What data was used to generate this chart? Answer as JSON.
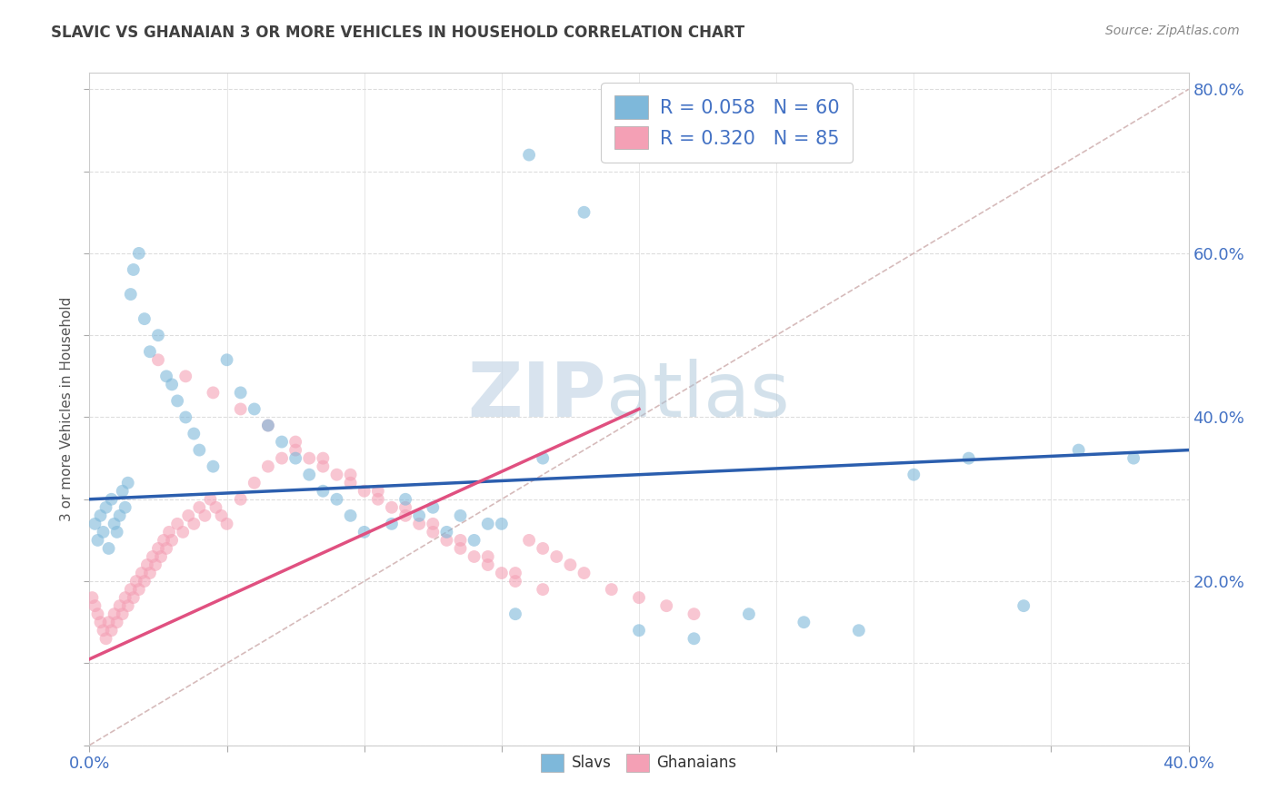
{
  "title": "SLAVIC VS GHANAIAN 3 OR MORE VEHICLES IN HOUSEHOLD CORRELATION CHART",
  "source_text": "Source: ZipAtlas.com",
  "ylabel": "3 or more Vehicles in Household",
  "xlim": [
    0.0,
    0.4
  ],
  "ylim": [
    0.0,
    0.82
  ],
  "slavs_color": "#7EB8DA",
  "ghanaians_color": "#F4A0B5",
  "slavs_R": 0.058,
  "slavs_N": 60,
  "ghanaians_R": 0.32,
  "ghanaians_N": 85,
  "slavs_scatter_x": [
    0.002,
    0.003,
    0.004,
    0.005,
    0.006,
    0.007,
    0.008,
    0.009,
    0.01,
    0.011,
    0.012,
    0.013,
    0.014,
    0.015,
    0.016,
    0.018,
    0.02,
    0.022,
    0.025,
    0.028,
    0.03,
    0.032,
    0.035,
    0.038,
    0.04,
    0.045,
    0.05,
    0.055,
    0.06,
    0.065,
    0.07,
    0.075,
    0.08,
    0.085,
    0.09,
    0.095,
    0.1,
    0.11,
    0.12,
    0.13,
    0.14,
    0.15,
    0.16,
    0.18,
    0.2,
    0.22,
    0.24,
    0.26,
    0.28,
    0.3,
    0.32,
    0.34,
    0.36,
    0.38,
    0.115,
    0.125,
    0.135,
    0.145,
    0.155,
    0.165
  ],
  "slavs_scatter_y": [
    0.27,
    0.25,
    0.28,
    0.26,
    0.29,
    0.24,
    0.3,
    0.27,
    0.26,
    0.28,
    0.31,
    0.29,
    0.32,
    0.55,
    0.58,
    0.6,
    0.52,
    0.48,
    0.5,
    0.45,
    0.44,
    0.42,
    0.4,
    0.38,
    0.36,
    0.34,
    0.47,
    0.43,
    0.41,
    0.39,
    0.37,
    0.35,
    0.33,
    0.31,
    0.3,
    0.28,
    0.26,
    0.27,
    0.28,
    0.26,
    0.25,
    0.27,
    0.72,
    0.65,
    0.14,
    0.13,
    0.16,
    0.15,
    0.14,
    0.33,
    0.35,
    0.17,
    0.36,
    0.35,
    0.3,
    0.29,
    0.28,
    0.27,
    0.16,
    0.35
  ],
  "ghanaians_scatter_x": [
    0.001,
    0.002,
    0.003,
    0.004,
    0.005,
    0.006,
    0.007,
    0.008,
    0.009,
    0.01,
    0.011,
    0.012,
    0.013,
    0.014,
    0.015,
    0.016,
    0.017,
    0.018,
    0.019,
    0.02,
    0.021,
    0.022,
    0.023,
    0.024,
    0.025,
    0.026,
    0.027,
    0.028,
    0.029,
    0.03,
    0.032,
    0.034,
    0.036,
    0.038,
    0.04,
    0.042,
    0.044,
    0.046,
    0.048,
    0.05,
    0.055,
    0.06,
    0.065,
    0.07,
    0.075,
    0.08,
    0.085,
    0.09,
    0.095,
    0.1,
    0.105,
    0.11,
    0.115,
    0.12,
    0.125,
    0.13,
    0.135,
    0.14,
    0.145,
    0.15,
    0.155,
    0.16,
    0.165,
    0.17,
    0.175,
    0.18,
    0.19,
    0.2,
    0.21,
    0.22,
    0.025,
    0.035,
    0.045,
    0.055,
    0.065,
    0.075,
    0.085,
    0.095,
    0.105,
    0.115,
    0.125,
    0.135,
    0.145,
    0.155,
    0.165
  ],
  "ghanaians_scatter_y": [
    0.18,
    0.17,
    0.16,
    0.15,
    0.14,
    0.13,
    0.15,
    0.14,
    0.16,
    0.15,
    0.17,
    0.16,
    0.18,
    0.17,
    0.19,
    0.18,
    0.2,
    0.19,
    0.21,
    0.2,
    0.22,
    0.21,
    0.23,
    0.22,
    0.24,
    0.23,
    0.25,
    0.24,
    0.26,
    0.25,
    0.27,
    0.26,
    0.28,
    0.27,
    0.29,
    0.28,
    0.3,
    0.29,
    0.28,
    0.27,
    0.3,
    0.32,
    0.34,
    0.35,
    0.36,
    0.35,
    0.34,
    0.33,
    0.32,
    0.31,
    0.3,
    0.29,
    0.28,
    0.27,
    0.26,
    0.25,
    0.24,
    0.23,
    0.22,
    0.21,
    0.2,
    0.25,
    0.24,
    0.23,
    0.22,
    0.21,
    0.19,
    0.18,
    0.17,
    0.16,
    0.47,
    0.45,
    0.43,
    0.41,
    0.39,
    0.37,
    0.35,
    0.33,
    0.31,
    0.29,
    0.27,
    0.25,
    0.23,
    0.21,
    0.19
  ],
  "slavs_trend_x": [
    0.0,
    0.4
  ],
  "slavs_trend_y": [
    0.3,
    0.36
  ],
  "ghanaians_trend_x": [
    0.0,
    0.2
  ],
  "ghanaians_trend_y": [
    0.105,
    0.41
  ],
  "ref_line_x": [
    0.0,
    0.4
  ],
  "ref_line_y": [
    0.0,
    0.8
  ],
  "watermark_zip": "ZIP",
  "watermark_atlas": "atlas",
  "background_color": "#ffffff",
  "grid_color": "#dddddd",
  "title_color": "#404040",
  "tick_label_color": "#4472c4",
  "ylabel_color": "#555555"
}
